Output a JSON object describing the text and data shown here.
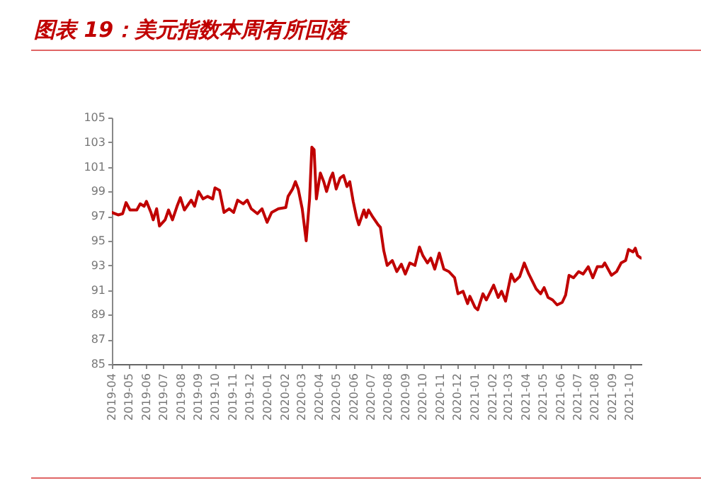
{
  "chart_data": {
    "type": "line",
    "title": "图表 19：美元指数本周有所回落",
    "x": [
      "2019-04-01",
      "2019-04-12",
      "2019-04-20",
      "2019-04-26",
      "2019-05-03",
      "2019-05-15",
      "2019-05-21",
      "2019-05-28",
      "2019-06-01",
      "2019-06-09",
      "2019-06-13",
      "2019-06-19",
      "2019-06-24",
      "2019-07-04",
      "2019-07-10",
      "2019-07-17",
      "2019-07-25",
      "2019-07-31",
      "2019-08-07",
      "2019-08-19",
      "2019-08-25",
      "2019-09-01",
      "2019-09-09",
      "2019-09-17",
      "2019-09-26",
      "2019-09-30",
      "2019-10-08",
      "2019-10-16",
      "2019-10-25",
      "2019-11-02",
      "2019-11-09",
      "2019-11-19",
      "2019-11-26",
      "2019-12-03",
      "2019-12-14",
      "2019-12-22",
      "2019-12-31",
      "2020-01-08",
      "2020-01-20",
      "2020-02-02",
      "2020-02-06",
      "2020-02-14",
      "2020-02-19",
      "2020-02-24",
      "2020-03-02",
      "2020-03-09",
      "2020-03-15",
      "2020-03-19",
      "2020-03-23",
      "2020-03-27",
      "2020-04-03",
      "2020-04-09",
      "2020-04-14",
      "2020-04-21",
      "2020-04-25",
      "2020-05-01",
      "2020-05-08",
      "2020-05-14",
      "2020-05-20",
      "2020-05-25",
      "2020-05-31",
      "2020-06-06",
      "2020-06-10",
      "2020-06-19",
      "2020-06-23",
      "2020-06-27",
      "2020-07-05",
      "2020-07-14",
      "2020-07-18",
      "2020-07-24",
      "2020-07-30",
      "2020-08-08",
      "2020-08-16",
      "2020-08-24",
      "2020-08-31",
      "2020-09-08",
      "2020-09-17",
      "2020-09-25",
      "2020-10-01",
      "2020-10-09",
      "2020-10-15",
      "2020-10-22",
      "2020-10-30",
      "2020-11-07",
      "2020-11-16",
      "2020-11-26",
      "2020-12-02",
      "2020-12-11",
      "2020-12-19",
      "2020-12-23",
      "2021-01-01",
      "2021-01-06",
      "2021-01-15",
      "2021-01-21",
      "2021-02-03",
      "2021-02-11",
      "2021-02-17",
      "2021-02-24",
      "2021-03-06",
      "2021-03-12",
      "2021-03-21",
      "2021-03-29",
      "2021-04-06",
      "2021-04-19",
      "2021-04-27",
      "2021-05-03",
      "2021-05-10",
      "2021-05-18",
      "2021-05-26",
      "2021-06-04",
      "2021-06-10",
      "2021-06-16",
      "2021-06-24",
      "2021-07-03",
      "2021-07-11",
      "2021-07-20",
      "2021-07-28",
      "2021-08-05",
      "2021-08-14",
      "2021-08-18",
      "2021-08-30",
      "2021-09-08",
      "2021-09-16",
      "2021-09-24",
      "2021-09-29",
      "2021-10-07",
      "2021-10-11",
      "2021-10-15",
      "2021-10-21"
    ],
    "series": [
      {
        "color": "#c00000",
        "values": [
          97.3,
          97.1,
          97.2,
          98.1,
          97.5,
          97.5,
          98.0,
          97.8,
          98.2,
          97.3,
          96.7,
          97.6,
          96.2,
          96.7,
          97.5,
          96.7,
          97.8,
          98.5,
          97.5,
          98.3,
          97.8,
          99.0,
          98.4,
          98.6,
          98.4,
          99.3,
          99.1,
          97.3,
          97.6,
          97.3,
          98.3,
          98.0,
          98.3,
          97.6,
          97.2,
          97.6,
          96.5,
          97.3,
          97.6,
          97.7,
          98.6,
          99.2,
          99.8,
          99.2,
          97.6,
          95.0,
          98.4,
          102.6,
          102.4,
          98.4,
          100.5,
          99.8,
          99.0,
          100.1,
          100.5,
          99.2,
          100.1,
          100.3,
          99.4,
          99.8,
          98.2,
          96.9,
          96.3,
          97.5,
          96.9,
          97.5,
          96.9,
          96.3,
          96.1,
          94.2,
          93.0,
          93.4,
          92.5,
          93.1,
          92.3,
          93.2,
          93.0,
          94.5,
          93.8,
          93.2,
          93.6,
          92.7,
          94.0,
          92.7,
          92.5,
          92.0,
          90.7,
          90.9,
          89.9,
          90.5,
          89.6,
          89.4,
          90.7,
          90.2,
          91.4,
          90.4,
          90.9,
          90.1,
          92.3,
          91.7,
          92.1,
          93.2,
          92.3,
          91.1,
          90.7,
          91.2,
          90.4,
          90.2,
          89.8,
          90.0,
          90.6,
          92.2,
          92.0,
          92.5,
          92.3,
          92.9,
          92.0,
          92.9,
          92.9,
          93.2,
          92.2,
          92.5,
          93.2,
          93.4,
          94.3,
          94.1,
          94.4,
          93.8,
          93.6
        ]
      }
    ],
    "xlim": [
      "2019-04-01",
      "2021-10-22"
    ],
    "xticks": [
      "2019-04",
      "2019-05",
      "2019-06",
      "2019-07",
      "2019-08",
      "2019-09",
      "2019-10",
      "2019-11",
      "2019-12",
      "2020-01",
      "2020-02",
      "2020-03",
      "2020-04",
      "2020-05",
      "2020-06",
      "2020-07",
      "2020-08",
      "2020-09",
      "2020-10",
      "2020-11",
      "2020-12",
      "2021-01",
      "2021-02",
      "2021-03",
      "2021-04",
      "2021-05",
      "2021-06",
      "2021-07",
      "2021-08",
      "2021-09",
      "2021-10"
    ],
    "ylim": [
      85,
      105
    ],
    "yticks": [
      85,
      87,
      89,
      91,
      93,
      95,
      97,
      99,
      101,
      103,
      105
    ],
    "grid": false,
    "marker": "none",
    "line_style": "solid"
  }
}
